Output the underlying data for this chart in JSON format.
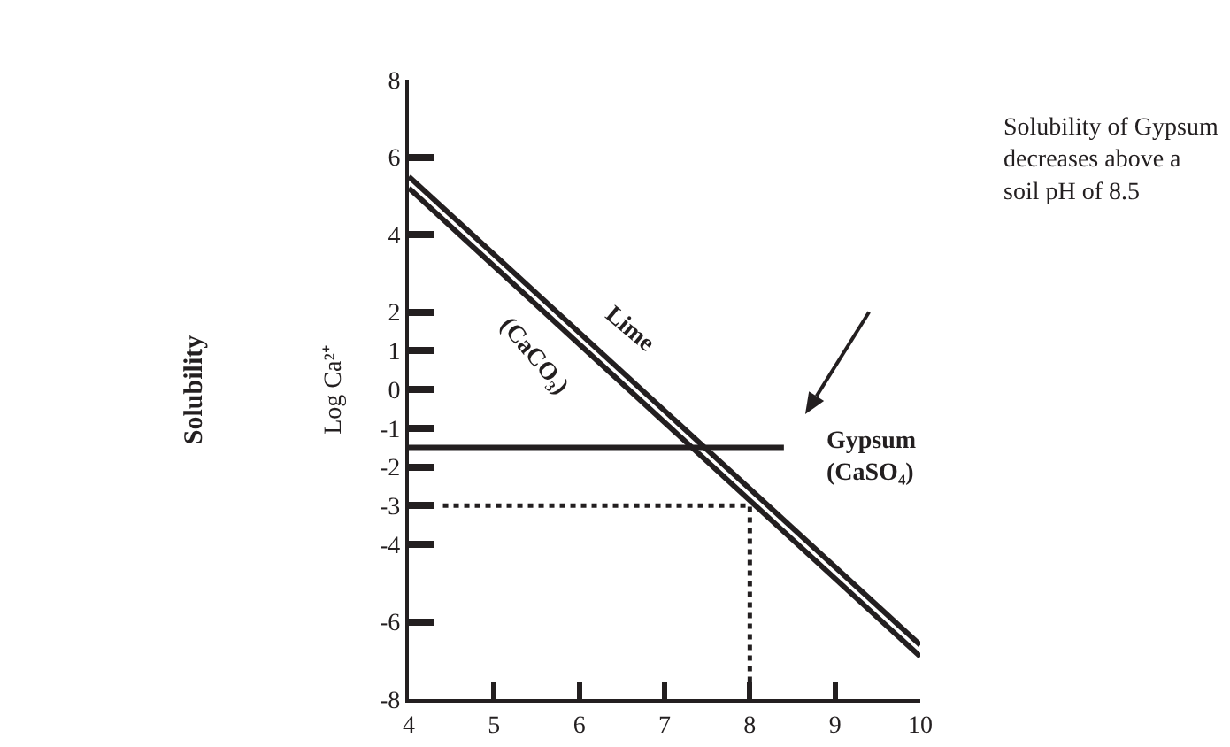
{
  "chart_data": {
    "type": "line",
    "ylabel": "Log Ca²⁺",
    "xlim": [
      4,
      10
    ],
    "ylim": [
      -8,
      8
    ],
    "xticks": [
      4,
      5,
      6,
      7,
      8,
      9,
      10
    ],
    "yticks": [
      -8,
      -6,
      -4,
      -3,
      -2,
      -1,
      0,
      1,
      2,
      4,
      6,
      8
    ],
    "grid": false,
    "marker": "none",
    "series": [
      {
        "color": "#231f20",
        "x": [
          4,
          10
        ],
        "values": [
          5.5,
          -6.6
        ],
        "line_style": "solid"
      },
      {
        "color": "#231f20",
        "x": [
          4,
          10
        ],
        "values": [
          5.2,
          -6.9
        ],
        "line_style": "solid"
      },
      {
        "color": "#231f20",
        "x": [
          4,
          8.4
        ],
        "values": [
          -1.5,
          -1.5
        ],
        "line_style": "solid"
      },
      {
        "color": "#231f20",
        "x": [
          4.4,
          8,
          8
        ],
        "values": [
          -3,
          -3,
          -8
        ],
        "line_style": "dotted"
      }
    ],
    "annotations": [
      "Solubility",
      {
        "text": "Lime",
        "x": 6.3,
        "y": 0.9
      },
      {
        "text": "(CaCO₃)",
        "x": 5.8,
        "y": 1.6
      },
      {
        "text": "Gypsum (CaSO₄)",
        "x": 8.4,
        "y": -1.5
      },
      "Solubility of Gypsum decreases above a soil pH of 8.5"
    ]
  }
}
